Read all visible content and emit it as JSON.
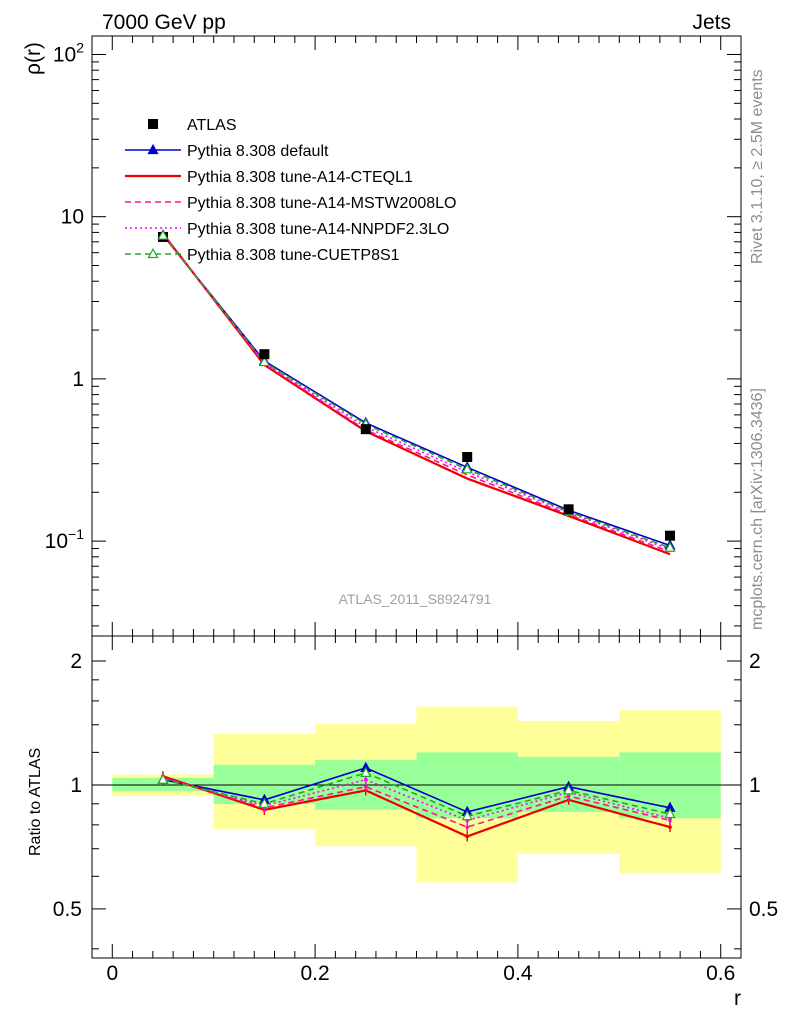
{
  "header": {
    "left": "7000 GeV pp",
    "right": "Jets"
  },
  "side_text": {
    "rivet": "Rivet 3.1.10, ≥ 2.5M events",
    "mcplots": "mcplots.cern.ch [arXiv:1306.3436]"
  },
  "watermark": "ATLAS_2011_S8924791",
  "chart_data": [
    {
      "type": "line",
      "title": "",
      "xlabel": "",
      "ylabel": "ρ(r)",
      "yscale": "log",
      "xlim": [
        -0.02,
        0.62
      ],
      "ylim": [
        0.026,
        130
      ],
      "y_ticks": [
        {
          "value": 0.1,
          "base": "10",
          "exp": "−1",
          "text": ""
        },
        {
          "value": 1,
          "text": "1"
        },
        {
          "value": 10,
          "text": "10"
        },
        {
          "value": 100,
          "base": "10",
          "exp": "2",
          "text": ""
        }
      ],
      "legend_position": "top-left",
      "x": [
        0.05,
        0.15,
        0.25,
        0.35,
        0.45,
        0.55
      ],
      "atlas": {
        "name": "ATLAS",
        "values": [
          7.5,
          1.42,
          0.49,
          0.33,
          0.157,
          0.108
        ]
      },
      "series": [
        {
          "name": "Pythia 8.308 default",
          "color": "#0000cc",
          "dash": "",
          "marker": "triangle-filled",
          "values": [
            7.7,
            1.29,
            0.535,
            0.285,
            0.155,
            0.094
          ]
        },
        {
          "name": "Pythia 8.308 tune-A14-CTEQL1",
          "color": "#ee0000",
          "dash": "",
          "marker": "none",
          "values": [
            7.85,
            1.22,
            0.475,
            0.243,
            0.143,
            0.083
          ]
        },
        {
          "name": "Pythia 8.308 tune-A14-MSTW2008LO",
          "color": "#ff1493",
          "dash": "6,4",
          "marker": "none",
          "values": [
            7.8,
            1.24,
            0.485,
            0.256,
            0.146,
            0.086
          ]
        },
        {
          "name": "Pythia 8.308 tune-A14-NNPDF2.3LO",
          "color": "#ff00ff",
          "dash": "2,3",
          "marker": "none",
          "values": [
            7.75,
            1.26,
            0.505,
            0.267,
            0.15,
            0.089
          ]
        },
        {
          "name": "Pythia 8.308 tune-CUETP8S1",
          "color": "#22aa22",
          "dash": "6,4",
          "marker": "triangle-open",
          "values": [
            7.65,
            1.27,
            0.525,
            0.277,
            0.152,
            0.091
          ]
        }
      ]
    },
    {
      "type": "line",
      "title": "",
      "xlabel": "r",
      "ylabel": "Ratio to ATLAS",
      "xlim": [
        -0.02,
        0.62
      ],
      "ylim": [
        0.38,
        2.3
      ],
      "x_ticks": [
        0,
        0.2,
        0.4,
        0.6
      ],
      "x_tick_labels": [
        "0",
        "0.2",
        "0.4",
        "0.6"
      ],
      "y_ticks": [
        0.5,
        1,
        2
      ],
      "y_tick_labels": [
        "0.5",
        "1",
        "2"
      ],
      "bands": {
        "bins": [
          [
            0.0,
            0.1
          ],
          [
            0.1,
            0.2
          ],
          [
            0.2,
            0.3
          ],
          [
            0.3,
            0.4
          ],
          [
            0.4,
            0.5
          ],
          [
            0.5,
            0.6
          ]
        ],
        "inner": [
          [
            0.965,
            1.04
          ],
          [
            0.9,
            1.12
          ],
          [
            0.87,
            1.15
          ],
          [
            0.83,
            1.2
          ],
          [
            0.86,
            1.17
          ],
          [
            0.83,
            1.2
          ]
        ],
        "outer": [
          [
            0.94,
            1.06
          ],
          [
            0.78,
            1.33
          ],
          [
            0.71,
            1.41
          ],
          [
            0.58,
            1.55
          ],
          [
            0.68,
            1.43
          ],
          [
            0.61,
            1.52
          ]
        ],
        "inner_color": "#99ff99",
        "outer_color": "#ffff99"
      },
      "x": [
        0.05,
        0.15,
        0.25,
        0.35,
        0.45,
        0.55
      ],
      "series": [
        {
          "name": "Pythia 8.308 default",
          "color": "#0000cc",
          "dash": "",
          "marker": "triangle-filled",
          "values": [
            1.03,
            0.92,
            1.1,
            0.86,
            0.99,
            0.88
          ]
        },
        {
          "name": "Pythia 8.308 tune-A14-CTEQL1",
          "color": "#ee0000",
          "dash": "",
          "marker": "none",
          "values": [
            1.05,
            0.87,
            0.97,
            0.75,
            0.92,
            0.79
          ]
        },
        {
          "name": "Pythia 8.308 tune-A14-MSTW2008LO",
          "color": "#ff1493",
          "dash": "6,4",
          "marker": "none",
          "values": [
            1.04,
            0.88,
            0.99,
            0.79,
            0.94,
            0.82
          ]
        },
        {
          "name": "Pythia 8.308 tune-A14-NNPDF2.3LO",
          "color": "#ff00ff",
          "dash": "2,3",
          "marker": "none",
          "values": [
            1.04,
            0.89,
            1.03,
            0.82,
            0.96,
            0.83
          ]
        },
        {
          "name": "Pythia 8.308 tune-CUETP8S1",
          "color": "#22aa22",
          "dash": "6,4",
          "marker": "triangle-open",
          "values": [
            1.03,
            0.9,
            1.07,
            0.84,
            0.97,
            0.85
          ]
        }
      ]
    }
  ]
}
